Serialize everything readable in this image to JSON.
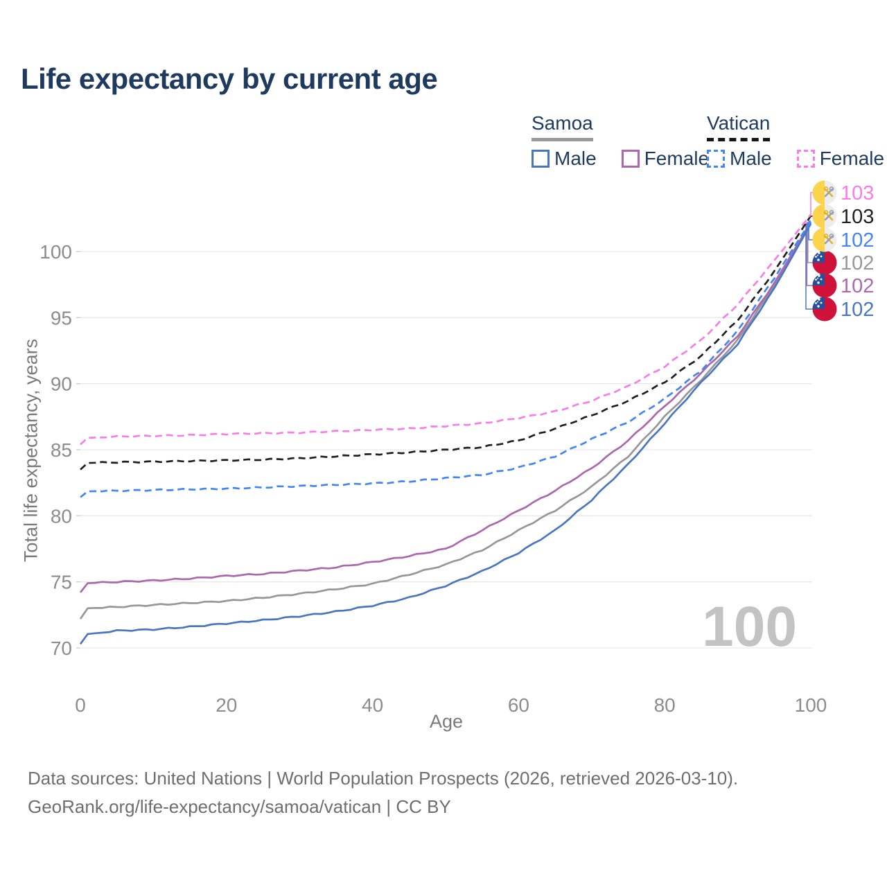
{
  "title": "Life expectancy by current age",
  "watermark": "100",
  "legend": {
    "samoa": {
      "name": "Samoa",
      "male": "Male",
      "female": "Female"
    },
    "vatican": {
      "name": "Vatican",
      "male": "Male",
      "female": "Female"
    }
  },
  "axes": {
    "x_label": "Age",
    "y_label": "Total life expectancy, years"
  },
  "footer": {
    "line1": "Data sources: United Nations | World Population Prospects (2026, retrieved 2026-03-10).",
    "line2": "GeoRank.org/life-expectancy/samoa/vatican | CC BY"
  },
  "colors": {
    "samoa_male": "#4a76c0",
    "samoa_female": "#ab68ac",
    "samoa_all": "#979797",
    "vatican_male": "#4285f4",
    "vatican_female": "#f97ce8",
    "vatican_all": "#1f1f1f",
    "title_text": "#1e3a5f",
    "axis_text": "#8c8c8c",
    "grid": "#e9e9e9",
    "watermark": "#c3c3c3",
    "samoa_flag_red": "#d0123a",
    "samoa_flag_blue": "#24509c",
    "vatican_flag_yellow": "#fbd34c",
    "vatican_flag_white": "#ededed"
  },
  "chart_data": {
    "type": "line",
    "title": "Life expectancy by current age",
    "xlabel": "Age",
    "ylabel": "Total life expectancy, years",
    "xlim": [
      0,
      100
    ],
    "ylim": [
      68,
      104
    ],
    "x_ticks": [
      0,
      20,
      40,
      60,
      80,
      100
    ],
    "y_ticks": [
      70,
      75,
      80,
      85,
      90,
      95,
      100
    ],
    "grid": true,
    "legend_position": "top-right",
    "x": [
      0,
      1,
      5,
      10,
      15,
      20,
      25,
      30,
      35,
      40,
      45,
      50,
      55,
      60,
      65,
      70,
      75,
      80,
      85,
      90,
      95,
      100
    ],
    "series": [
      {
        "name": "Samoa",
        "group": "All",
        "country": "Samoa",
        "dashed": false,
        "color_key": "samoa_all",
        "end_label": "102",
        "label_row": 3,
        "values": [
          72.2,
          73.0,
          73.1,
          73.25,
          73.4,
          73.55,
          73.8,
          74.1,
          74.45,
          74.85,
          75.55,
          76.3,
          77.4,
          78.9,
          80.4,
          82.2,
          84.5,
          87.5,
          90.3,
          93.3,
          97.4,
          102.1
        ]
      },
      {
        "name": "Samoa Female",
        "group": "Female",
        "country": "Samoa",
        "dashed": false,
        "color_key": "samoa_female",
        "end_label": "102",
        "label_row": 4,
        "values": [
          74.2,
          74.9,
          75.0,
          75.1,
          75.25,
          75.45,
          75.6,
          75.85,
          76.1,
          76.5,
          76.95,
          77.5,
          78.9,
          80.4,
          81.9,
          83.6,
          85.7,
          88.3,
          90.8,
          93.6,
          97.6,
          102.2
        ]
      },
      {
        "name": "Samoa Male",
        "group": "Male",
        "country": "Samoa",
        "dashed": false,
        "color_key": "samoa_male",
        "end_label": "102",
        "label_row": 5,
        "values": [
          70.3,
          71.05,
          71.3,
          71.4,
          71.6,
          71.85,
          72.1,
          72.4,
          72.75,
          73.2,
          73.8,
          74.7,
          75.8,
          77.2,
          78.9,
          81.2,
          83.9,
          87.0,
          90.1,
          93.0,
          97.2,
          102.1
        ]
      },
      {
        "name": "Vatican Male",
        "group": "Male",
        "country": "Vatican",
        "dashed": true,
        "color_key": "vatican_male",
        "end_label": "102",
        "label_row": 2,
        "values": [
          81.4,
          81.85,
          81.9,
          81.95,
          82.0,
          82.05,
          82.15,
          82.25,
          82.35,
          82.45,
          82.6,
          82.85,
          83.1,
          83.65,
          84.5,
          85.8,
          87.1,
          88.85,
          91.0,
          94.0,
          98.0,
          102.3
        ]
      },
      {
        "name": "Vatican",
        "group": "All",
        "country": "Vatican",
        "dashed": true,
        "color_key": "vatican_all",
        "end_label": "103",
        "label_row": 1,
        "values": [
          83.5,
          84.0,
          84.05,
          84.1,
          84.15,
          84.2,
          84.25,
          84.35,
          84.5,
          84.65,
          84.8,
          85.0,
          85.2,
          85.7,
          86.6,
          87.6,
          88.7,
          90.1,
          92.1,
          94.8,
          98.5,
          102.7
        ]
      },
      {
        "name": "Vatican Female",
        "group": "Female",
        "country": "Vatican",
        "dashed": true,
        "color_key": "vatican_female",
        "end_label": "103",
        "label_row": 0,
        "values": [
          85.4,
          85.9,
          86.0,
          86.05,
          86.1,
          86.2,
          86.25,
          86.3,
          86.4,
          86.5,
          86.6,
          86.8,
          87.0,
          87.4,
          87.9,
          88.7,
          89.8,
          91.3,
          93.3,
          96.0,
          99.3,
          102.8
        ]
      }
    ]
  }
}
